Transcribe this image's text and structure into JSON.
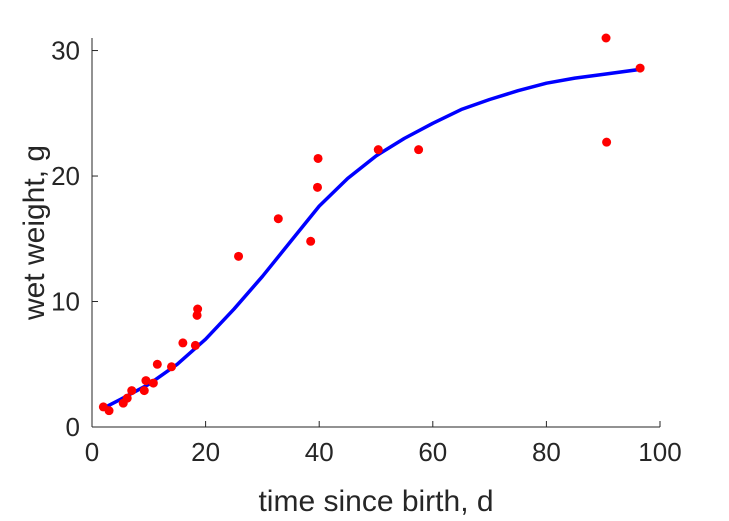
{
  "chart_data": {
    "type": "scatter",
    "title": "",
    "xlabel": "time since birth, d",
    "ylabel": "wet weight, g",
    "xlim": [
      0,
      100
    ],
    "ylim": [
      0,
      31
    ],
    "xticks": [
      0,
      20,
      40,
      60,
      80,
      100
    ],
    "yticks": [
      0,
      10,
      20,
      30
    ],
    "grid": false,
    "box": false,
    "series": [
      {
        "type": "scatter",
        "color": "#ff0000",
        "points": [
          [
            2,
            1.6
          ],
          [
            3,
            1.3
          ],
          [
            5.5,
            1.9
          ],
          [
            6.2,
            2.3
          ],
          [
            7,
            2.9
          ],
          [
            9.2,
            2.9
          ],
          [
            9.5,
            3.7
          ],
          [
            10.8,
            3.5
          ],
          [
            11.5,
            5.0
          ],
          [
            14,
            4.8
          ],
          [
            16,
            6.7
          ],
          [
            18.2,
            6.5
          ],
          [
            18.5,
            8.9
          ],
          [
            18.6,
            9.4
          ],
          [
            25.8,
            13.6
          ],
          [
            32.8,
            16.6
          ],
          [
            38.5,
            14.8
          ],
          [
            39.7,
            19.1
          ],
          [
            39.8,
            21.4
          ],
          [
            50.4,
            22.1
          ],
          [
            57.5,
            22.1
          ],
          [
            90.5,
            31.0
          ],
          [
            90.6,
            22.7
          ],
          [
            96.5,
            28.6
          ]
        ]
      },
      {
        "type": "line",
        "color": "#0000ff",
        "points": [
          [
            2,
            1.5
          ],
          [
            5,
            2.2
          ],
          [
            10,
            3.4
          ],
          [
            15,
            5.0
          ],
          [
            20,
            7.0
          ],
          [
            25,
            9.4
          ],
          [
            30,
            12.0
          ],
          [
            35,
            14.8
          ],
          [
            40,
            17.6
          ],
          [
            45,
            19.8
          ],
          [
            50,
            21.6
          ],
          [
            55,
            23.0
          ],
          [
            60,
            24.2
          ],
          [
            65,
            25.3
          ],
          [
            70,
            26.1
          ],
          [
            75,
            26.8
          ],
          [
            80,
            27.4
          ],
          [
            85,
            27.8
          ],
          [
            90,
            28.1
          ],
          [
            96.5,
            28.5
          ]
        ]
      }
    ]
  }
}
